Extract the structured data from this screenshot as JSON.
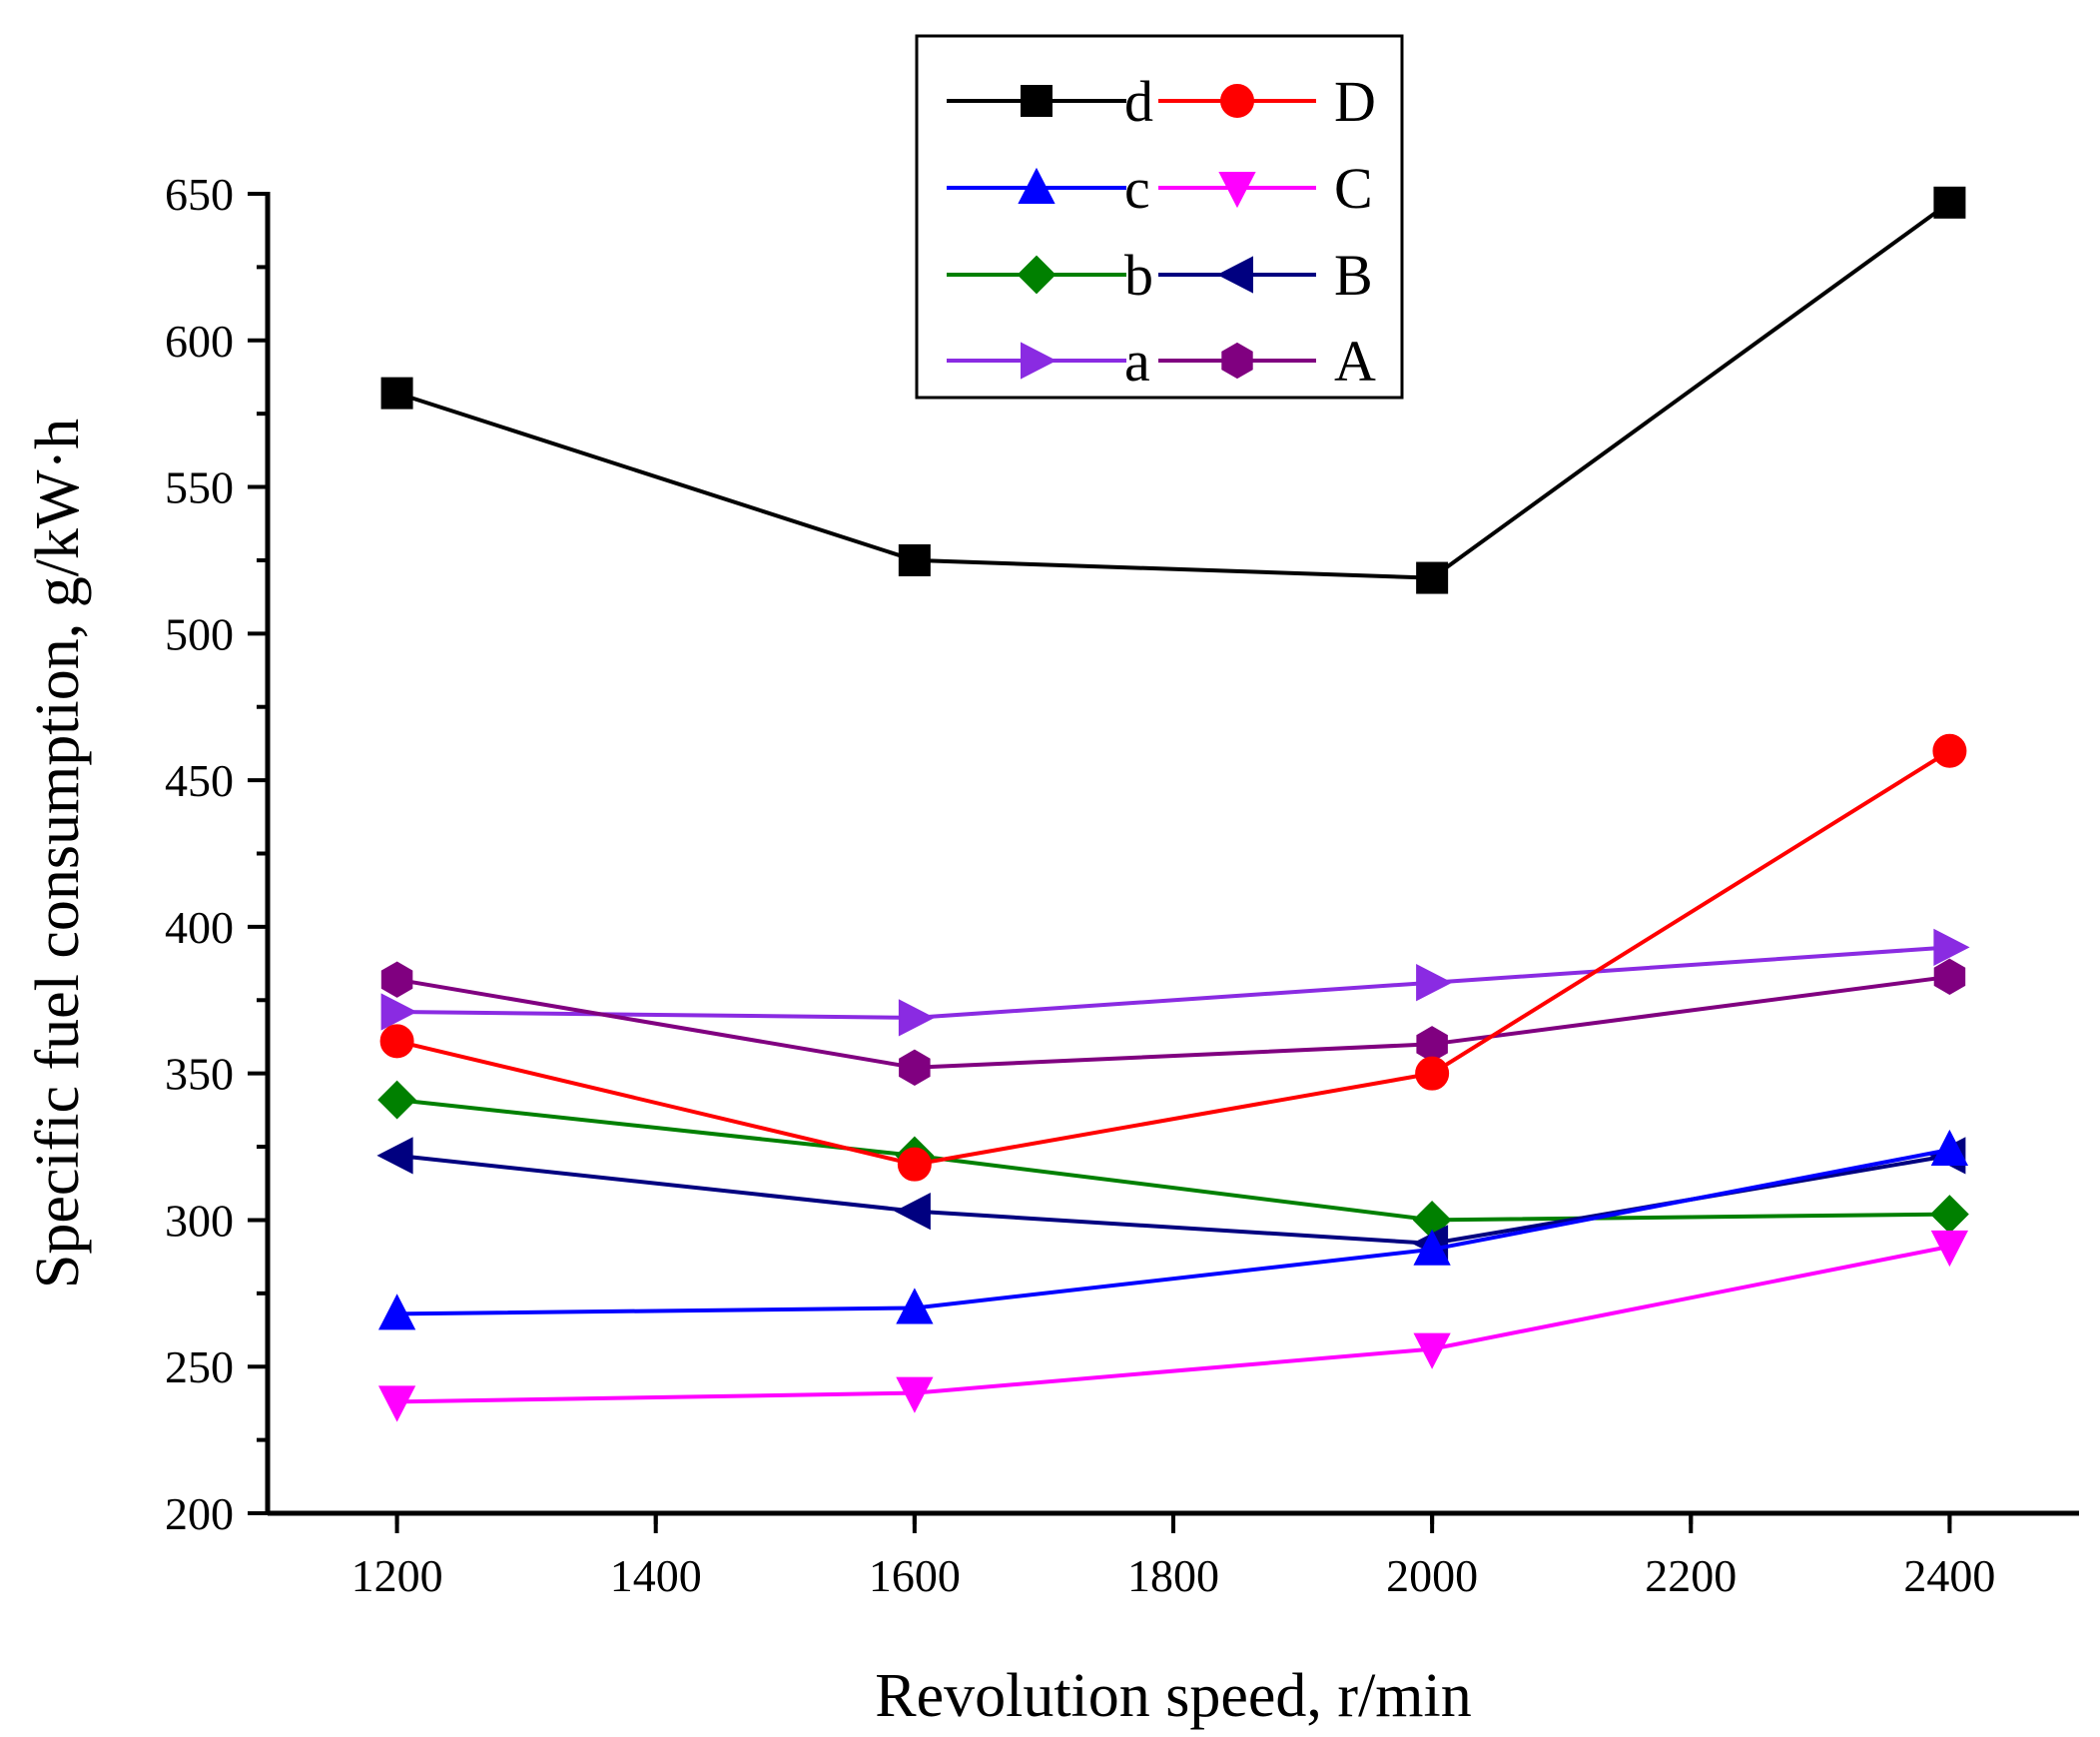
{
  "chart_data": {
    "type": "line",
    "title": "",
    "xlabel": "Revolution speed, r/min",
    "ylabel": "Specific fuel consumption, g/kW·h",
    "xlim": [
      1100,
      2500
    ],
    "ylim": [
      200,
      650
    ],
    "x_ticks": [
      1200,
      1400,
      1600,
      1800,
      2000,
      2200,
      2400
    ],
    "y_ticks": [
      200,
      250,
      300,
      350,
      400,
      450,
      500,
      550,
      600,
      650
    ],
    "grid": false,
    "legend_position": "top-center",
    "x": [
      1200,
      1600,
      2000,
      2400
    ],
    "series": [
      {
        "name": "d",
        "color": "#000000",
        "marker": "square",
        "values": [
          582,
          525,
          519,
          647
        ]
      },
      {
        "name": "D",
        "color": "#ff0000",
        "marker": "circle",
        "values": [
          361,
          319,
          350,
          460
        ]
      },
      {
        "name": "c",
        "color": "#0000ff",
        "marker": "triangle-up",
        "values": [
          268,
          270,
          290,
          324
        ]
      },
      {
        "name": "C",
        "color": "#ff00ff",
        "marker": "triangle-down",
        "values": [
          238,
          241,
          256,
          291
        ]
      },
      {
        "name": "b",
        "color": "#008000",
        "marker": "diamond",
        "values": [
          341,
          322,
          300,
          302
        ]
      },
      {
        "name": "B",
        "color": "#000080",
        "marker": "triangle-left",
        "values": [
          322,
          303,
          292,
          322
        ]
      },
      {
        "name": "a",
        "color": "#8a2be2",
        "marker": "triangle-right",
        "values": [
          371,
          369,
          381,
          393
        ]
      },
      {
        "name": "A",
        "color": "#800080",
        "marker": "hexagon",
        "values": [
          382,
          352,
          360,
          383
        ]
      }
    ]
  }
}
